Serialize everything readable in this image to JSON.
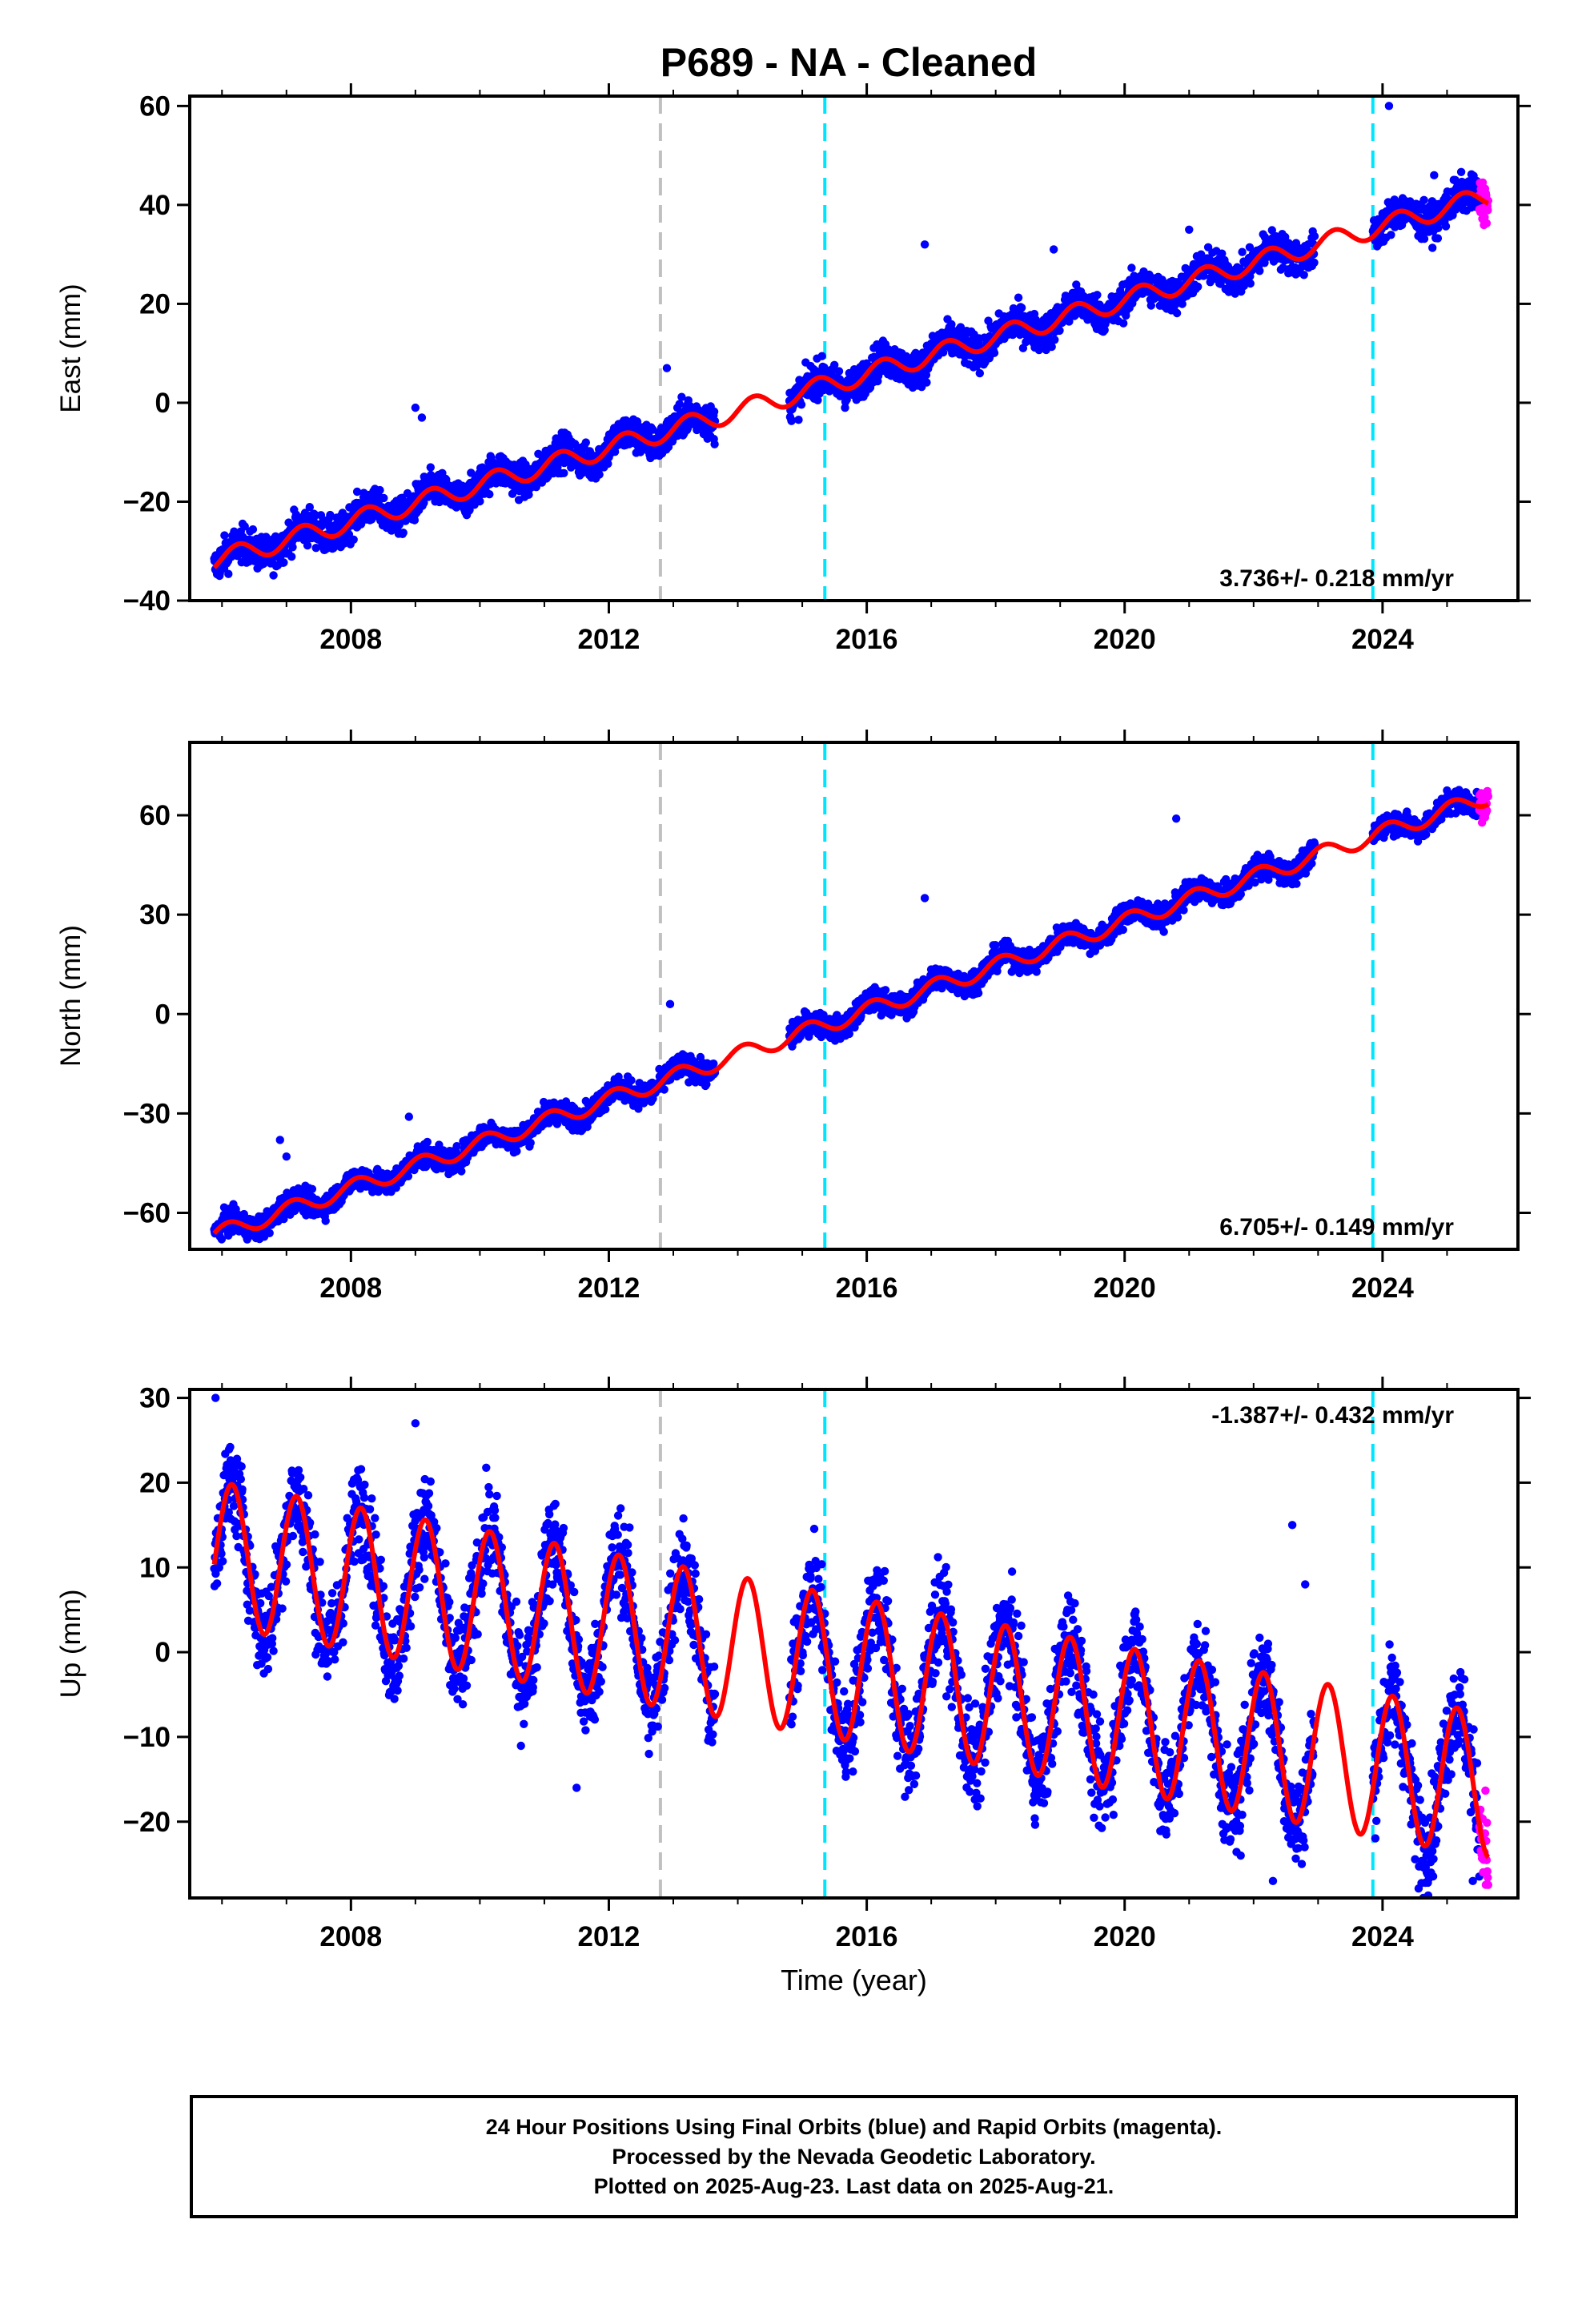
{
  "title": "P689  - NA - Cleaned",
  "footer": {
    "line1": "24 Hour Positions Using Final Orbits (blue) and Rapid Orbits (magenta).",
    "line2": "Processed by the Nevada Geodetic Laboratory.",
    "line3": "Plotted on 2025-Aug-23. Last data on 2025-Aug-21."
  },
  "colors": {
    "final_orbits": "#0000ff",
    "rapid_orbits": "#ff00ff",
    "model_fit": "#ff0000",
    "equipment_change": "#c0c0c0",
    "event_marker": "#00e5ff"
  },
  "chart_data": [
    {
      "type": "scatter",
      "panel": "east",
      "ylabel": "East (mm)",
      "xlim": [
        2005.5,
        2026.1
      ],
      "ylim": [
        -40,
        62
      ],
      "yticks": [
        60,
        40,
        20,
        0,
        -20,
        -40
      ],
      "xticks": [
        2008,
        2012,
        2016,
        2020,
        2024
      ],
      "rate_annotation": "3.736+/- 0.218 mm/yr",
      "annotation_position": "bottom-right",
      "vertical_lines": [
        {
          "x": 2012.8,
          "color": "gray"
        },
        {
          "x": 2015.35,
          "color": "cyan"
        },
        {
          "x": 2023.85,
          "color": "cyan"
        }
      ],
      "model": {
        "offset_at_2006": -31.5,
        "rate_mm_yr": 3.736,
        "annual_amp": 2.0,
        "phase": 0.0
      },
      "series": [
        {
          "name": "Final Orbits (blue)",
          "segments": [
            [
              2005.88,
              2013.65
            ],
            [
              2014.8,
              2022.95
            ],
            [
              2023.85,
              2025.5
            ]
          ],
          "scatter_mm": 2.5
        },
        {
          "name": "Rapid Orbits (magenta)",
          "segments": [
            [
              2025.5,
              2025.64
            ]
          ],
          "scatter_mm": 3.0
        }
      ],
      "outliers": [
        [
          2009.0,
          -1
        ],
        [
          2009.1,
          -3
        ],
        [
          2012.9,
          7
        ],
        [
          2016.9,
          32
        ],
        [
          2018.9,
          31
        ],
        [
          2021.0,
          35
        ],
        [
          2024.1,
          60
        ],
        [
          2024.8,
          46
        ]
      ]
    },
    {
      "type": "scatter",
      "panel": "north",
      "ylabel": "North (mm)",
      "xlim": [
        2005.5,
        2026.1
      ],
      "ylim": [
        -71,
        82
      ],
      "yticks": [
        60,
        30,
        0,
        -30,
        -60
      ],
      "xticks": [
        2008,
        2012,
        2016,
        2020,
        2024
      ],
      "rate_annotation": "6.705+/- 0.149 mm/yr",
      "annotation_position": "bottom-right",
      "vertical_lines": [
        {
          "x": 2012.8,
          "color": "gray"
        },
        {
          "x": 2015.35,
          "color": "cyan"
        },
        {
          "x": 2023.85,
          "color": "cyan"
        }
      ],
      "model": {
        "offset_at_2006": -66.0,
        "rate_mm_yr": 6.705,
        "annual_amp": 2.5,
        "phase": 1.0
      },
      "series": [
        {
          "name": "Final Orbits (blue)",
          "segments": [
            [
              2005.88,
              2013.65
            ],
            [
              2014.8,
              2022.95
            ],
            [
              2023.85,
              2025.5
            ]
          ],
          "scatter_mm": 2.5
        },
        {
          "name": "Rapid Orbits (magenta)",
          "segments": [
            [
              2025.5,
              2025.64
            ]
          ],
          "scatter_mm": 3.0
        }
      ],
      "outliers": [
        [
          2006.9,
          -38
        ],
        [
          2007.0,
          -43
        ],
        [
          2008.9,
          -31
        ],
        [
          2012.95,
          3
        ],
        [
          2016.9,
          35
        ],
        [
          2020.8,
          59
        ]
      ]
    },
    {
      "type": "scatter",
      "panel": "up",
      "ylabel": "Up (mm)",
      "xlabel": "Time (year)",
      "xlim": [
        2005.5,
        2026.1
      ],
      "ylim": [
        -29,
        31
      ],
      "yticks": [
        30,
        20,
        10,
        0,
        -10,
        -20
      ],
      "xticks": [
        2008,
        2012,
        2016,
        2020,
        2024
      ],
      "rate_annotation": "-1.387+/- 0.432 mm/yr",
      "annotation_position": "top-right",
      "vertical_lines": [
        {
          "x": 2012.8,
          "color": "gray"
        },
        {
          "x": 2015.35,
          "color": "cyan"
        },
        {
          "x": 2023.85,
          "color": "cyan"
        }
      ],
      "model": {
        "offset_at_2006": 11.5,
        "rate_mm_yr": -1.387,
        "annual_amp": 8.5,
        "phase": 0.6
      },
      "series": [
        {
          "name": "Final Orbits (blue)",
          "segments": [
            [
              2005.88,
              2013.65
            ],
            [
              2014.8,
              2022.95
            ],
            [
              2023.85,
              2025.5
            ]
          ],
          "scatter_mm": 4.0
        },
        {
          "name": "Rapid Orbits (magenta)",
          "segments": [
            [
              2025.5,
              2025.64
            ]
          ],
          "scatter_mm": 5.0
        }
      ],
      "outliers": [
        [
          2005.9,
          30
        ],
        [
          2009.0,
          27
        ],
        [
          2011.5,
          -16
        ],
        [
          2021.8,
          -24
        ],
        [
          2022.3,
          -27
        ],
        [
          2022.6,
          15
        ],
        [
          2022.8,
          8
        ],
        [
          2025.4,
          -27
        ]
      ]
    }
  ]
}
